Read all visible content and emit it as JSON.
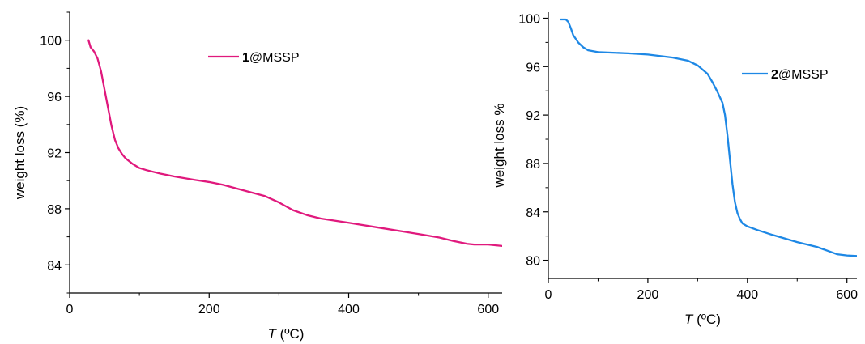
{
  "chart_data": [
    {
      "type": "line",
      "ylabel": "weight loss (%)",
      "xlabel_italic": "T",
      "xlabel_unit": " (ºC)",
      "xlim": [
        0,
        620
      ],
      "ylim": [
        82,
        102
      ],
      "xticks": [
        0,
        200,
        400,
        600
      ],
      "yticks": [
        84,
        88,
        92,
        96,
        100
      ],
      "grid": false,
      "legend_position": "top-right",
      "series": [
        {
          "name_bold": "1",
          "name_rest": "@MSSP",
          "color": "#e0197d",
          "x": [
            27,
            30,
            35,
            40,
            45,
            50,
            55,
            60,
            65,
            70,
            75,
            80,
            90,
            100,
            110,
            130,
            150,
            180,
            200,
            220,
            250,
            280,
            300,
            320,
            340,
            360,
            400,
            450,
            500,
            530,
            550,
            570,
            580,
            600,
            620
          ],
          "y": [
            100.0,
            99.5,
            99.2,
            98.7,
            97.8,
            96.5,
            95.2,
            93.9,
            92.9,
            92.3,
            91.9,
            91.6,
            91.2,
            90.9,
            90.75,
            90.5,
            90.3,
            90.05,
            89.9,
            89.7,
            89.3,
            88.9,
            88.45,
            87.9,
            87.55,
            87.3,
            87.0,
            86.6,
            86.2,
            85.95,
            85.7,
            85.5,
            85.45,
            85.45,
            85.35
          ]
        }
      ]
    },
    {
      "type": "line",
      "ylabel": "weight loss %",
      "xlabel_italic": "T",
      "xlabel_unit": " (ºC)",
      "xlim": [
        0,
        620
      ],
      "ylim": [
        78.5,
        100.5
      ],
      "xticks": [
        0,
        200,
        400,
        600
      ],
      "yticks": [
        80,
        84,
        88,
        92,
        96,
        100
      ],
      "grid": false,
      "legend_position": "top-right",
      "series": [
        {
          "name_bold": "2",
          "name_rest": "@MSSP",
          "color": "#1e88e5",
          "x": [
            25,
            35,
            40,
            45,
            50,
            60,
            70,
            80,
            100,
            130,
            160,
            200,
            250,
            280,
            300,
            320,
            330,
            340,
            350,
            355,
            360,
            365,
            370,
            375,
            380,
            385,
            390,
            400,
            420,
            450,
            500,
            540,
            560,
            580,
            600,
            620
          ],
          "y": [
            99.9,
            99.9,
            99.7,
            99.2,
            98.6,
            98.0,
            97.6,
            97.35,
            97.2,
            97.15,
            97.1,
            97.0,
            96.75,
            96.5,
            96.1,
            95.4,
            94.7,
            93.9,
            93.0,
            92.0,
            90.3,
            88.3,
            86.3,
            84.8,
            83.9,
            83.4,
            83.05,
            82.8,
            82.5,
            82.1,
            81.5,
            81.1,
            80.8,
            80.5,
            80.4,
            80.35
          ]
        }
      ]
    }
  ]
}
